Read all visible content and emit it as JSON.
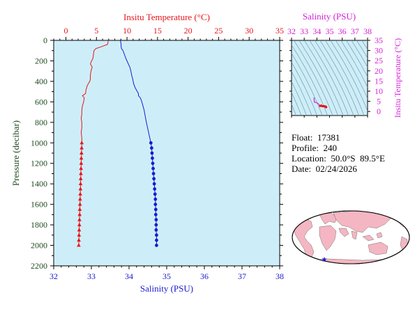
{
  "chart_data": [
    {
      "type": "line",
      "title": "",
      "ylabel": "Pressure (decibar)",
      "ylim": [
        2200,
        0
      ],
      "y_ticks": [
        0,
        200,
        400,
        600,
        800,
        1000,
        1200,
        1400,
        1600,
        1800,
        2000,
        2200
      ],
      "x_top": {
        "label": "Insitu Temperature (°C)",
        "range": [
          -2,
          35
        ],
        "ticks": [
          0,
          5,
          10,
          15,
          20,
          25,
          30,
          35
        ],
        "color": "#e8141b"
      },
      "x_bottom": {
        "label": "Salinity (PSU)",
        "range": [
          32,
          38
        ],
        "ticks": [
          32,
          33,
          34,
          35,
          36,
          37,
          38
        ],
        "color": "#1a1ad0"
      },
      "background": "#cdeef8",
      "series": [
        {
          "variable": "temperature",
          "axis": "top",
          "color": "#e8141b",
          "marker": "triangle",
          "pressure": [
            0,
            20,
            40,
            60,
            80,
            100,
            140,
            180,
            200,
            230,
            260,
            300,
            340,
            380,
            400,
            440,
            480,
            520,
            540,
            560,
            600,
            640,
            680,
            720,
            760,
            800,
            850,
            900,
            950,
            1000,
            1050,
            1100,
            1150,
            1200,
            1250,
            1300,
            1350,
            1400,
            1450,
            1500,
            1550,
            1600,
            1650,
            1700,
            1750,
            1800,
            1850,
            1900,
            1950,
            2000
          ],
          "values": [
            6.9,
            6.9,
            6.8,
            5.9,
            4.9,
            4.6,
            4.5,
            4.4,
            4.2,
            4.0,
            4.3,
            4.1,
            4.0,
            4.0,
            3.9,
            3.5,
            3.3,
            3.2,
            2.7,
            3.0,
            2.9,
            2.7,
            2.6,
            2.6,
            2.5,
            2.6,
            2.6,
            2.5,
            2.6,
            2.6,
            2.58,
            2.55,
            2.52,
            2.5,
            2.47,
            2.45,
            2.42,
            2.4,
            2.38,
            2.35,
            2.32,
            2.3,
            2.27,
            2.25,
            2.22,
            2.2,
            2.17,
            2.15,
            2.12,
            2.1
          ],
          "marker_from_pressure": 1000
        },
        {
          "variable": "salinity",
          "axis": "bottom",
          "color": "#1a1ad0",
          "marker": "circle",
          "pressure": [
            0,
            20,
            40,
            60,
            80,
            100,
            140,
            180,
            220,
            260,
            300,
            340,
            380,
            420,
            460,
            500,
            520,
            540,
            560,
            600,
            640,
            680,
            720,
            760,
            800,
            850,
            900,
            950,
            1000,
            1050,
            1100,
            1150,
            1200,
            1250,
            1300,
            1350,
            1400,
            1450,
            1500,
            1550,
            1600,
            1650,
            1700,
            1750,
            1800,
            1850,
            1900,
            1950,
            2000
          ],
          "values": [
            33.77,
            33.78,
            33.79,
            33.79,
            33.8,
            33.84,
            33.88,
            33.92,
            33.97,
            34.02,
            34.05,
            34.07,
            34.1,
            34.12,
            34.16,
            34.22,
            34.25,
            34.25,
            34.3,
            34.34,
            34.37,
            34.4,
            34.42,
            34.44,
            34.46,
            34.49,
            34.52,
            34.55,
            34.58,
            34.6,
            34.61,
            34.62,
            34.63,
            34.64,
            34.65,
            34.66,
            34.67,
            34.68,
            34.69,
            34.7,
            34.7,
            34.71,
            34.71,
            34.72,
            34.72,
            34.72,
            34.73,
            34.73,
            34.73
          ],
          "marker_from_pressure": 1000
        }
      ]
    },
    {
      "type": "scatter",
      "title": "",
      "xlabel": "Salinity (PSU)",
      "ylabel": "Insitu Temperature (°C)",
      "xlim": [
        32,
        38
      ],
      "ylim": [
        -2,
        35
      ],
      "x_ticks": [
        32,
        33,
        34,
        35,
        36,
        37,
        38
      ],
      "y_ticks": [
        0,
        5,
        10,
        15,
        20,
        25,
        30,
        35
      ],
      "color": "#d61fd6",
      "background": "#cdeef8",
      "series": [
        {
          "salinity": [
            33.77,
            33.8,
            33.92,
            34.05,
            34.16,
            34.25,
            34.34,
            34.42,
            34.49,
            34.58,
            34.62,
            34.66,
            34.69,
            34.71,
            34.73
          ],
          "temperature": [
            6.9,
            4.6,
            4.4,
            4.1,
            3.5,
            2.7,
            2.9,
            2.6,
            2.6,
            2.6,
            2.52,
            2.42,
            2.35,
            2.25,
            2.1
          ],
          "line_color": "#d61fd6",
          "marker_color": "#e8141b"
        }
      ]
    }
  ],
  "info": {
    "float_line": "Float:  17381",
    "profile_line": "Profile:  240",
    "location_line": "Location:  50.0°S  89.5°E",
    "date_line": "Date:  02/24/2026"
  },
  "map": {
    "land_color": "#f4b6c2",
    "ocean_color": "#ffffff",
    "marker_color": "#1a1ad0"
  }
}
